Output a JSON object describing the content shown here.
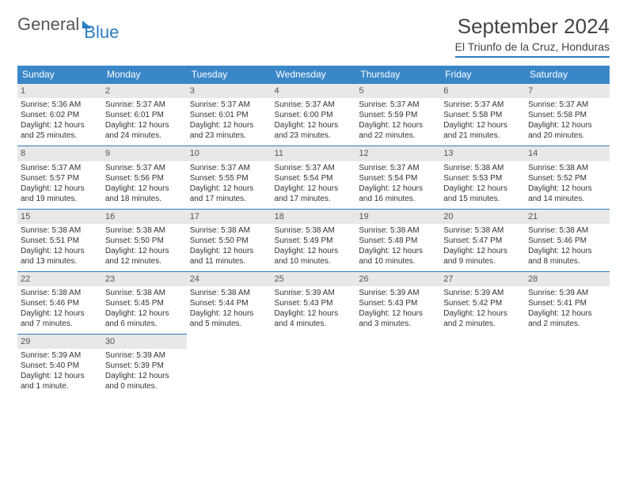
{
  "logo": {
    "text1": "General",
    "text2": "Blue"
  },
  "title": "September 2024",
  "location": "El Triunfo de la Cruz, Honduras",
  "colors": {
    "header_bg": "#3a87c8",
    "accent": "#2d7dc0",
    "daynum_bg": "#e8e8e8",
    "text": "#333333",
    "page_bg": "#ffffff"
  },
  "day_headers": [
    "Sunday",
    "Monday",
    "Tuesday",
    "Wednesday",
    "Thursday",
    "Friday",
    "Saturday"
  ],
  "weeks": [
    [
      {
        "n": "1",
        "sr": "Sunrise: 5:36 AM",
        "ss": "Sunset: 6:02 PM",
        "dl1": "Daylight: 12 hours",
        "dl2": "and 25 minutes."
      },
      {
        "n": "2",
        "sr": "Sunrise: 5:37 AM",
        "ss": "Sunset: 6:01 PM",
        "dl1": "Daylight: 12 hours",
        "dl2": "and 24 minutes."
      },
      {
        "n": "3",
        "sr": "Sunrise: 5:37 AM",
        "ss": "Sunset: 6:01 PM",
        "dl1": "Daylight: 12 hours",
        "dl2": "and 23 minutes."
      },
      {
        "n": "4",
        "sr": "Sunrise: 5:37 AM",
        "ss": "Sunset: 6:00 PM",
        "dl1": "Daylight: 12 hours",
        "dl2": "and 23 minutes."
      },
      {
        "n": "5",
        "sr": "Sunrise: 5:37 AM",
        "ss": "Sunset: 5:59 PM",
        "dl1": "Daylight: 12 hours",
        "dl2": "and 22 minutes."
      },
      {
        "n": "6",
        "sr": "Sunrise: 5:37 AM",
        "ss": "Sunset: 5:58 PM",
        "dl1": "Daylight: 12 hours",
        "dl2": "and 21 minutes."
      },
      {
        "n": "7",
        "sr": "Sunrise: 5:37 AM",
        "ss": "Sunset: 5:58 PM",
        "dl1": "Daylight: 12 hours",
        "dl2": "and 20 minutes."
      }
    ],
    [
      {
        "n": "8",
        "sr": "Sunrise: 5:37 AM",
        "ss": "Sunset: 5:57 PM",
        "dl1": "Daylight: 12 hours",
        "dl2": "and 19 minutes."
      },
      {
        "n": "9",
        "sr": "Sunrise: 5:37 AM",
        "ss": "Sunset: 5:56 PM",
        "dl1": "Daylight: 12 hours",
        "dl2": "and 18 minutes."
      },
      {
        "n": "10",
        "sr": "Sunrise: 5:37 AM",
        "ss": "Sunset: 5:55 PM",
        "dl1": "Daylight: 12 hours",
        "dl2": "and 17 minutes."
      },
      {
        "n": "11",
        "sr": "Sunrise: 5:37 AM",
        "ss": "Sunset: 5:54 PM",
        "dl1": "Daylight: 12 hours",
        "dl2": "and 17 minutes."
      },
      {
        "n": "12",
        "sr": "Sunrise: 5:37 AM",
        "ss": "Sunset: 5:54 PM",
        "dl1": "Daylight: 12 hours",
        "dl2": "and 16 minutes."
      },
      {
        "n": "13",
        "sr": "Sunrise: 5:38 AM",
        "ss": "Sunset: 5:53 PM",
        "dl1": "Daylight: 12 hours",
        "dl2": "and 15 minutes."
      },
      {
        "n": "14",
        "sr": "Sunrise: 5:38 AM",
        "ss": "Sunset: 5:52 PM",
        "dl1": "Daylight: 12 hours",
        "dl2": "and 14 minutes."
      }
    ],
    [
      {
        "n": "15",
        "sr": "Sunrise: 5:38 AM",
        "ss": "Sunset: 5:51 PM",
        "dl1": "Daylight: 12 hours",
        "dl2": "and 13 minutes."
      },
      {
        "n": "16",
        "sr": "Sunrise: 5:38 AM",
        "ss": "Sunset: 5:50 PM",
        "dl1": "Daylight: 12 hours",
        "dl2": "and 12 minutes."
      },
      {
        "n": "17",
        "sr": "Sunrise: 5:38 AM",
        "ss": "Sunset: 5:50 PM",
        "dl1": "Daylight: 12 hours",
        "dl2": "and 11 minutes."
      },
      {
        "n": "18",
        "sr": "Sunrise: 5:38 AM",
        "ss": "Sunset: 5:49 PM",
        "dl1": "Daylight: 12 hours",
        "dl2": "and 10 minutes."
      },
      {
        "n": "19",
        "sr": "Sunrise: 5:38 AM",
        "ss": "Sunset: 5:48 PM",
        "dl1": "Daylight: 12 hours",
        "dl2": "and 10 minutes."
      },
      {
        "n": "20",
        "sr": "Sunrise: 5:38 AM",
        "ss": "Sunset: 5:47 PM",
        "dl1": "Daylight: 12 hours",
        "dl2": "and 9 minutes."
      },
      {
        "n": "21",
        "sr": "Sunrise: 5:38 AM",
        "ss": "Sunset: 5:46 PM",
        "dl1": "Daylight: 12 hours",
        "dl2": "and 8 minutes."
      }
    ],
    [
      {
        "n": "22",
        "sr": "Sunrise: 5:38 AM",
        "ss": "Sunset: 5:46 PM",
        "dl1": "Daylight: 12 hours",
        "dl2": "and 7 minutes."
      },
      {
        "n": "23",
        "sr": "Sunrise: 5:38 AM",
        "ss": "Sunset: 5:45 PM",
        "dl1": "Daylight: 12 hours",
        "dl2": "and 6 minutes."
      },
      {
        "n": "24",
        "sr": "Sunrise: 5:38 AM",
        "ss": "Sunset: 5:44 PM",
        "dl1": "Daylight: 12 hours",
        "dl2": "and 5 minutes."
      },
      {
        "n": "25",
        "sr": "Sunrise: 5:39 AM",
        "ss": "Sunset: 5:43 PM",
        "dl1": "Daylight: 12 hours",
        "dl2": "and 4 minutes."
      },
      {
        "n": "26",
        "sr": "Sunrise: 5:39 AM",
        "ss": "Sunset: 5:43 PM",
        "dl1": "Daylight: 12 hours",
        "dl2": "and 3 minutes."
      },
      {
        "n": "27",
        "sr": "Sunrise: 5:39 AM",
        "ss": "Sunset: 5:42 PM",
        "dl1": "Daylight: 12 hours",
        "dl2": "and 2 minutes."
      },
      {
        "n": "28",
        "sr": "Sunrise: 5:39 AM",
        "ss": "Sunset: 5:41 PM",
        "dl1": "Daylight: 12 hours",
        "dl2": "and 2 minutes."
      }
    ],
    [
      {
        "n": "29",
        "sr": "Sunrise: 5:39 AM",
        "ss": "Sunset: 5:40 PM",
        "dl1": "Daylight: 12 hours",
        "dl2": "and 1 minute."
      },
      {
        "n": "30",
        "sr": "Sunrise: 5:39 AM",
        "ss": "Sunset: 5:39 PM",
        "dl1": "Daylight: 12 hours",
        "dl2": "and 0 minutes."
      },
      null,
      null,
      null,
      null,
      null
    ]
  ]
}
